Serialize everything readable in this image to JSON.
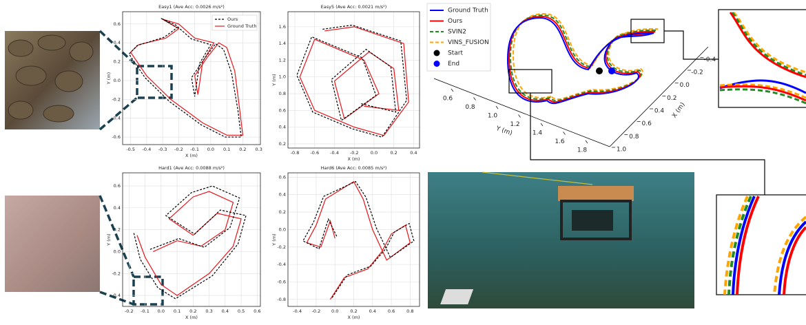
{
  "chart_data": [
    {
      "type": "line",
      "title": "Easy1 (Ave Acc: 0.0026 m/s²)",
      "xlabel": "X (m)",
      "ylabel": "Y (m)",
      "grid": true,
      "legend": "upper right",
      "xlim": [
        -0.55,
        0.31
      ],
      "ylim": [
        -0.68,
        0.73
      ],
      "xticks": [
        -0.5,
        -0.4,
        -0.3,
        -0.2,
        -0.1,
        {
          "value": 0,
          "label": "0.0"
        },
        0.1,
        0.2,
        0.3
      ],
      "yticks": [
        -0.6,
        -0.4,
        -0.2,
        {
          "value": 0,
          "label": "0.0"
        },
        0.2,
        0.4,
        0.6
      ],
      "series": [
        {
          "name": "Ours",
          "color": "#000000",
          "dash": true,
          "x": [
            -0.31,
            -0.21,
            -0.29,
            -0.46,
            -0.51,
            -0.41,
            -0.26,
            -0.06,
            0.09,
            0.19,
            0.17,
            0.13,
            0.08,
            0.03,
            -0.04,
            -0.12,
            -0.1,
            -0.07,
            0.0,
            -0.12,
            -0.22,
            -0.31
          ],
          "values": [
            0.66,
            0.56,
            0.46,
            0.37,
            0.28,
            0.03,
            -0.22,
            -0.47,
            -0.6,
            -0.6,
            -0.32,
            0.08,
            0.33,
            0.39,
            0.23,
            0.03,
            -0.17,
            0.18,
            0.38,
            0.44,
            0.59,
            0.66
          ]
        },
        {
          "name": "Ground Truth",
          "color": "#e8151b",
          "dash": false,
          "x": [
            -0.3,
            -0.2,
            -0.28,
            -0.45,
            -0.5,
            -0.4,
            -0.25,
            -0.05,
            0.1,
            0.2,
            0.18,
            0.15,
            0.1,
            0.05,
            -0.02,
            -0.1,
            -0.08,
            -0.05,
            0.02,
            -0.1,
            -0.2,
            -0.3
          ],
          "values": [
            0.65,
            0.55,
            0.45,
            0.38,
            0.3,
            0.05,
            -0.2,
            -0.45,
            -0.58,
            -0.58,
            -0.3,
            0.1,
            0.35,
            0.4,
            0.25,
            0.05,
            -0.15,
            0.2,
            0.4,
            0.45,
            0.6,
            0.65
          ]
        }
      ]
    },
    {
      "type": "line",
      "title": "Easy5 (Ave Acc: 0.0021 m/s²)",
      "xlabel": "X (m)",
      "ylabel": "Y (m)",
      "grid": true,
      "xlim": [
        -0.87,
        0.46
      ],
      "ylim": [
        0.15,
        1.78
      ],
      "xticks": [
        -0.8,
        -0.6,
        -0.4,
        -0.2,
        {
          "value": 0,
          "label": "0.0"
        },
        0.2,
        0.4
      ],
      "yticks": [
        0.2,
        0.4,
        0.6,
        0.8,
        {
          "value": 1,
          "label": "1.0"
        },
        1.2,
        1.4,
        1.6
      ],
      "series": [
        {
          "name": "Ours",
          "color": "#000000",
          "dash": true,
          "x": [
            -0.52,
            -0.22,
            0.27,
            0.33,
            0.08,
            -0.22,
            -0.62,
            -0.78,
            -0.63,
            -0.12,
            0.02,
            -0.33,
            -0.43,
            -0.08,
            0.17,
            0.22,
            -0.13
          ],
          "values": [
            1.57,
            1.62,
            1.43,
            0.72,
            0.28,
            0.38,
            0.58,
            1.02,
            1.48,
            1.23,
            0.78,
            0.48,
            0.97,
            1.33,
            1.12,
            0.58,
            0.68
          ]
        },
        {
          "name": "Ground Truth",
          "color": "#e8151b",
          "dash": false,
          "x": [
            -0.5,
            -0.2,
            0.3,
            0.35,
            0.1,
            -0.2,
            -0.6,
            -0.75,
            -0.6,
            -0.1,
            0.05,
            -0.3,
            -0.4,
            -0.05,
            0.2,
            0.25,
            -0.1
          ],
          "values": [
            1.55,
            1.6,
            1.4,
            0.7,
            0.3,
            0.4,
            0.6,
            1.0,
            1.45,
            1.2,
            0.8,
            0.5,
            0.95,
            1.3,
            1.1,
            0.6,
            0.65
          ]
        }
      ]
    },
    {
      "type": "line",
      "title": "Hard1 (Ave Acc: 0.0088 m/s²)",
      "xlabel": "X (m)",
      "ylabel": "Y (m)",
      "grid": true,
      "xlim": [
        -0.24,
        0.62
      ],
      "ylim": [
        -0.5,
        0.72
      ],
      "xticks": [
        -0.2,
        -0.1,
        {
          "value": 0,
          "label": "0.0"
        },
        0.1,
        0.2,
        0.3,
        0.4,
        0.5,
        0.6
      ],
      "yticks": [
        -0.4,
        -0.2,
        {
          "value": 0,
          "label": "0.0"
        },
        0.2,
        0.4,
        0.6
      ],
      "series": [
        {
          "name": "Ours",
          "color": "#000000",
          "dash": true,
          "x": [
            -0.17,
            -0.13,
            -0.02,
            0.09,
            0.32,
            0.48,
            0.53,
            0.37,
            0.21,
            0.03,
            0.19,
            0.32,
            0.49,
            0.43,
            0.27,
            0.11,
            -0.07
          ],
          "values": [
            0.17,
            -0.07,
            -0.33,
            -0.43,
            -0.22,
            0.07,
            0.33,
            0.38,
            0.16,
            0.33,
            0.54,
            0.6,
            0.49,
            0.22,
            0.04,
            0.12,
            0.02
          ]
        },
        {
          "name": "Ground Truth",
          "color": "#e8151b",
          "dash": false,
          "x": [
            -0.15,
            -0.1,
            0.0,
            0.1,
            0.3,
            0.45,
            0.5,
            0.35,
            0.2,
            0.05,
            0.2,
            0.3,
            0.45,
            0.4,
            0.25,
            0.1,
            -0.05
          ],
          "values": [
            0.15,
            -0.05,
            -0.3,
            -0.4,
            -0.2,
            0.05,
            0.3,
            0.35,
            0.15,
            0.3,
            0.5,
            0.55,
            0.45,
            0.2,
            0.05,
            0.1,
            0.0
          ]
        }
      ]
    },
    {
      "type": "line",
      "title": "Hard6 (Ave Acc: 0.0085 m/s²)",
      "xlabel": "X (m)",
      "ylabel": "Y (m)",
      "grid": true,
      "xlim": [
        -0.5,
        0.9
      ],
      "ylim": [
        -0.88,
        0.65
      ],
      "xticks": [
        -0.4,
        -0.2,
        {
          "value": 0,
          "label": "0.0"
        },
        0.2,
        0.4,
        0.6,
        0.8
      ],
      "yticks": [
        -0.8,
        -0.6,
        -0.4,
        -0.2,
        {
          "value": 0,
          "label": "0.0"
        },
        0.2,
        0.4,
        0.6
      ],
      "series": [
        {
          "name": "Ours",
          "color": "#000000",
          "dash": true,
          "x": [
            -0.03,
            0.13,
            0.38,
            0.54,
            0.63,
            0.79,
            0.84,
            0.59,
            0.44,
            0.33,
            0.22,
            0.06,
            -0.12,
            -0.23,
            -0.34,
            -0.17,
            -0.07,
            0.02
          ],
          "values": [
            -0.78,
            -0.52,
            -0.42,
            -0.22,
            -0.03,
            0.07,
            -0.13,
            -0.32,
            0.02,
            0.37,
            0.55,
            0.47,
            0.38,
            0.08,
            -0.13,
            -0.22,
            0.12,
            -0.08
          ]
        },
        {
          "name": "Ground Truth",
          "color": "#e8151b",
          "dash": false,
          "x": [
            -0.05,
            0.1,
            0.35,
            0.5,
            0.6,
            0.75,
            0.8,
            0.55,
            0.4,
            0.3,
            0.2,
            0.05,
            -0.1,
            -0.2,
            -0.3,
            -0.15,
            -0.05,
            0.0
          ],
          "values": [
            -0.8,
            -0.55,
            -0.45,
            -0.25,
            -0.05,
            0.05,
            -0.15,
            -0.35,
            0.0,
            0.35,
            0.55,
            0.45,
            0.35,
            0.05,
            -0.15,
            -0.2,
            0.1,
            -0.1
          ]
        }
      ]
    },
    {
      "type": "line3d",
      "xlabel": "X (m)",
      "ylabel": "Y (m)",
      "legend": "upper left",
      "xlim": [
        -0.45,
        1.05
      ],
      "ylim": [
        0.5,
        1.9
      ],
      "xticks": [
        -0.4,
        -0.2,
        {
          "value": 0,
          "label": "0.0"
        },
        0.2,
        0.4,
        0.6,
        0.8,
        {
          "value": 1,
          "label": "1.0"
        }
      ],
      "yticks": [
        0.6,
        0.8,
        {
          "value": 1,
          "label": "1.0"
        },
        1.2,
        1.4,
        1.6,
        1.8
      ],
      "series": [
        {
          "name": "Ground Truth",
          "color": "#0000ff",
          "dash": false
        },
        {
          "name": "Ours",
          "color": "#ff0000",
          "dash": false
        },
        {
          "name": "SVIN2",
          "color": "#228b22",
          "dash": true
        },
        {
          "name": "VINS_FUSION",
          "color": "#ffa500",
          "dash": true
        }
      ],
      "markers": [
        {
          "name": "Start",
          "color": "#000000"
        },
        {
          "name": "End",
          "color": "#0000ff"
        }
      ]
    }
  ]
}
